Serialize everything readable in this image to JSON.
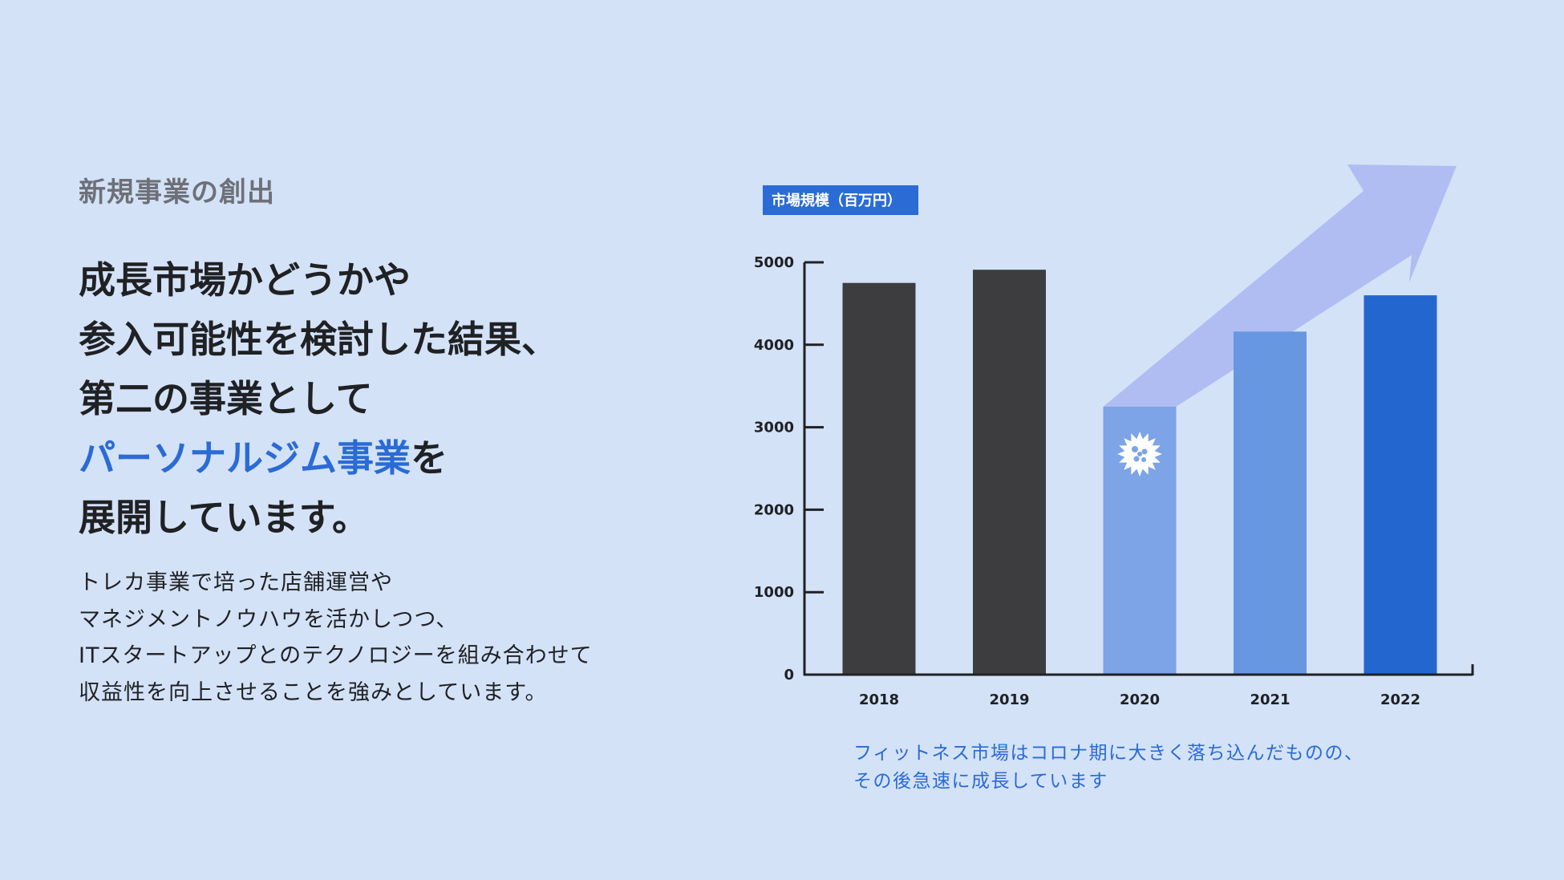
{
  "heading": {
    "eyebrow": "新規事業の創出",
    "lines": [
      "成長市場かどうかや",
      "参入可能性を検討した結果、",
      "第二の事業として"
    ],
    "highlight": "パーソナルジム事業",
    "after_highlight": "を",
    "last_line": "展開しています。"
  },
  "body_lines": [
    "トレカ事業で培った店舗運営や",
    "マネジメントノウハウを活かしつつ、",
    "ITスタートアップとのテクノロジーを組み合わせて",
    "収益性を向上させることを強みとしています。"
  ],
  "caption_lines": [
    "フィットネス市場はコロナ期に大きく落ち込んだものの、",
    "その後急速に成長しています"
  ],
  "colors": {
    "background": "#d3e2f7",
    "accent": "#2a6bd6",
    "bar_dark": "#3d3d40",
    "bar_2020": "#7ca4e6",
    "bar_2021": "#6797e0",
    "bar_2022": "#2466d0",
    "arrow": "#b0bdf2"
  },
  "chart_data": {
    "type": "bar",
    "unit_label": "市場規模（百万円）",
    "categories": [
      "2018",
      "2019",
      "2020",
      "2021",
      "2022"
    ],
    "values": [
      4750,
      4910,
      3250,
      4160,
      4600
    ],
    "ylim": [
      0,
      5000
    ],
    "yticks": [
      0,
      1000,
      2000,
      3000,
      4000,
      5000
    ],
    "grid": false,
    "annotations": [
      "virus-icon on 2020 bar",
      "upward trend arrow from 2020"
    ]
  }
}
